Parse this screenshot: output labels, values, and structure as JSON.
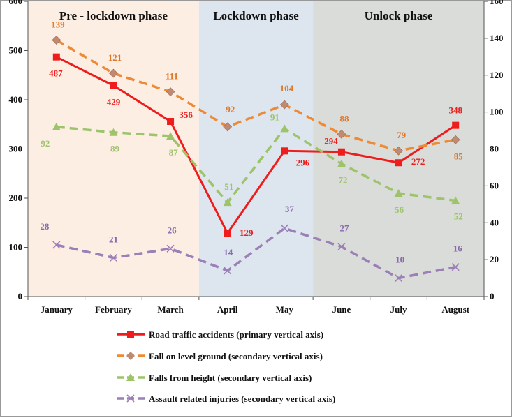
{
  "chart_data": {
    "type": "line",
    "categories": [
      "January",
      "February",
      "March",
      "April",
      "May",
      "June",
      "July",
      "August"
    ],
    "primary_axis": {
      "min": 0,
      "max": 600,
      "step": 100,
      "ticks": [
        "0",
        "100",
        "200",
        "300",
        "400",
        "500",
        "600"
      ]
    },
    "secondary_axis": {
      "min": 0,
      "max": 160,
      "step": 20,
      "ticks": [
        "0",
        "20",
        "40",
        "60",
        "80",
        "100",
        "120",
        "140",
        "160"
      ]
    },
    "phases": [
      {
        "name": "Pre - lockdown phase",
        "from": "January",
        "to": "March",
        "color": "#fdeee4"
      },
      {
        "name": "Lockdown phase",
        "from": "April",
        "to": "May",
        "color": "#dde6ee"
      },
      {
        "name": "Unlock phase",
        "from": "June",
        "to": "August",
        "color": "#d9dcd8"
      }
    ],
    "series": [
      {
        "name": "Road traffic accidents (primary vertical  axis)",
        "axis": "primary",
        "color": "#ee1c1c",
        "label_color": "#ee1c1c",
        "dash": "",
        "marker": "square",
        "values": [
          487,
          429,
          356,
          129,
          296,
          294,
          272,
          348
        ],
        "labels": [
          "487",
          "429",
          "356",
          "129",
          "296",
          "294",
          "272",
          "348"
        ]
      },
      {
        "name": "Fall on level ground (secondary vertical axis)",
        "axis": "secondary",
        "color": "#ee8a35",
        "label_color": "#e0782a",
        "marker_color": "#c08a70",
        "dash": "12,7",
        "marker": "diamond",
        "values": [
          139,
          121,
          111,
          92,
          104,
          88,
          79,
          85
        ],
        "labels": [
          "139",
          "121",
          "111",
          "92",
          "104",
          "88",
          "79",
          "85"
        ]
      },
      {
        "name": "Falls from height (secondary vertical axis)",
        "axis": "secondary",
        "color": "#9dc46a",
        "label_color": "#9dc46a",
        "dash": "12,7",
        "marker": "triangle",
        "values": [
          92,
          89,
          87,
          51,
          91,
          72,
          56,
          52
        ],
        "labels": [
          "92",
          "89",
          "87",
          "51",
          "91",
          "72",
          "56",
          "52"
        ]
      },
      {
        "name": "Assault related injuries (secondary vertical axis)",
        "axis": "secondary",
        "color": "#9b7fb6",
        "label_color": "#8a6aac",
        "dash": "12,7",
        "marker": "x",
        "values": [
          28,
          21,
          26,
          14,
          37,
          27,
          10,
          16
        ],
        "labels": [
          "28",
          "21",
          "26",
          "14",
          "37",
          "27",
          "10",
          "16"
        ]
      }
    ],
    "legend_position": "bottom"
  }
}
